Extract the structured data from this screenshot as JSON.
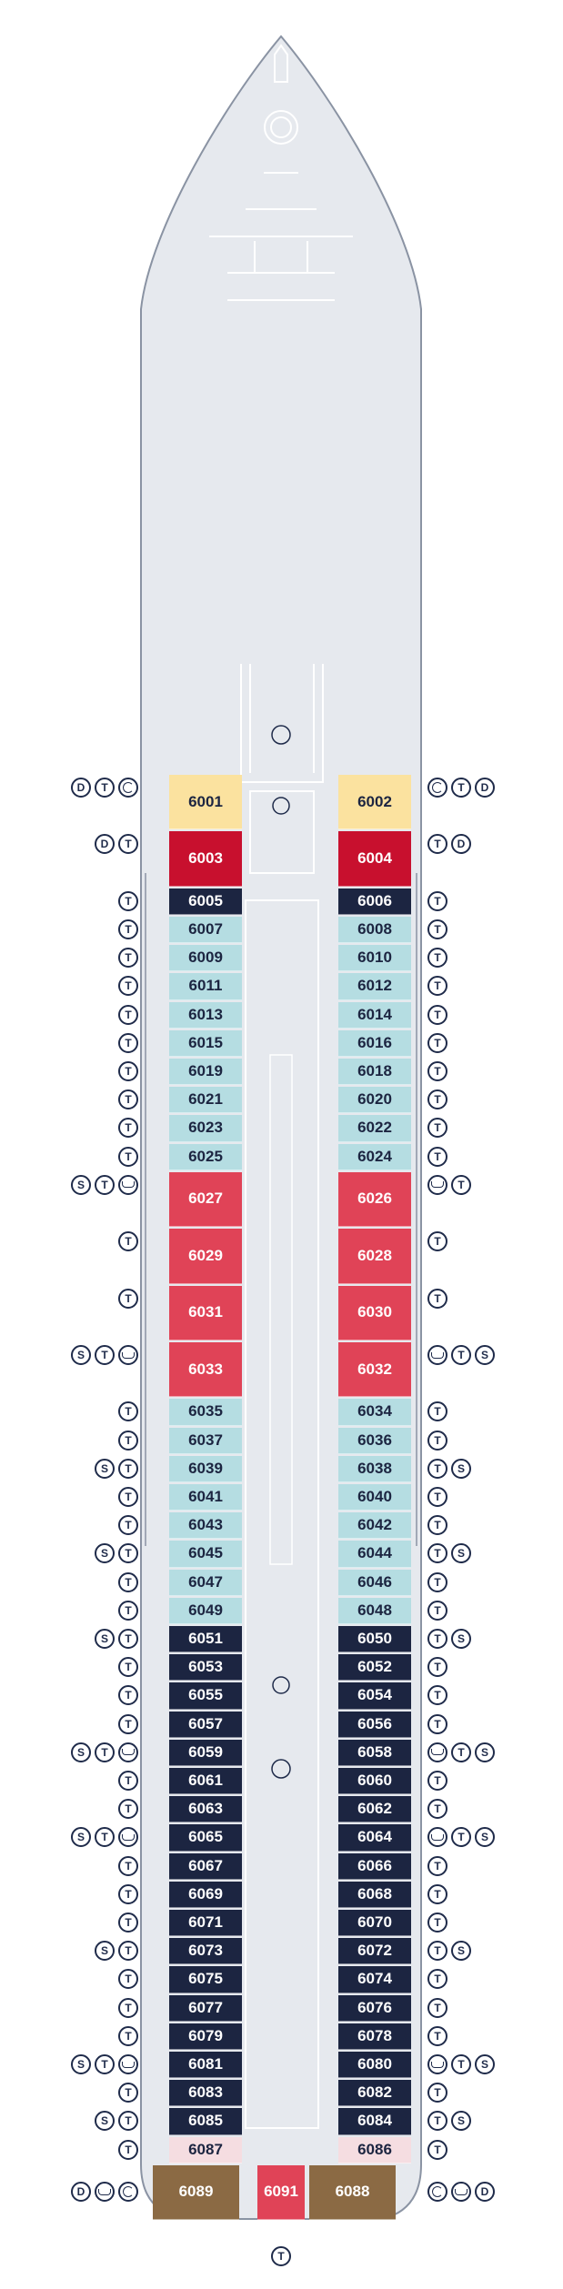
{
  "colors": {
    "hull": "#e6e9ee",
    "hull_stroke": "#8a93a3",
    "outline": "#ffffff",
    "light_blue": "#b5dde2",
    "navy": "#1c2541",
    "red": "#e04357",
    "crimson": "#c8102e",
    "yellow": "#fbe29f",
    "pink": "#f5dde1",
    "brown": "#8b6a44",
    "icon": "#1f2b4a"
  },
  "cabins": [
    {
      "no": "6001",
      "side": "L",
      "row": 0,
      "h": 2,
      "cls": "yellow"
    },
    {
      "no": "6002",
      "side": "R",
      "row": 0,
      "h": 2,
      "cls": "yellow"
    },
    {
      "no": "6003",
      "side": "L",
      "row": 2,
      "h": 2,
      "cls": "crimson"
    },
    {
      "no": "6004",
      "side": "R",
      "row": 2,
      "h": 2,
      "cls": "crimson"
    },
    {
      "no": "6005",
      "side": "L",
      "row": 4,
      "h": 1,
      "cls": "navy"
    },
    {
      "no": "6006",
      "side": "R",
      "row": 4,
      "h": 1,
      "cls": "navy"
    },
    {
      "no": "6007",
      "side": "L",
      "row": 5,
      "h": 1,
      "cls": "light_blue"
    },
    {
      "no": "6008",
      "side": "R",
      "row": 5,
      "h": 1,
      "cls": "light_blue"
    },
    {
      "no": "6009",
      "side": "L",
      "row": 6,
      "h": 1,
      "cls": "light_blue"
    },
    {
      "no": "6010",
      "side": "R",
      "row": 6,
      "h": 1,
      "cls": "light_blue"
    },
    {
      "no": "6011",
      "side": "L",
      "row": 7,
      "h": 1,
      "cls": "light_blue"
    },
    {
      "no": "6012",
      "side": "R",
      "row": 7,
      "h": 1,
      "cls": "light_blue"
    },
    {
      "no": "6013",
      "side": "L",
      "row": 8,
      "h": 1,
      "cls": "light_blue"
    },
    {
      "no": "6014",
      "side": "R",
      "row": 8,
      "h": 1,
      "cls": "light_blue"
    },
    {
      "no": "6015",
      "side": "L",
      "row": 9,
      "h": 1,
      "cls": "light_blue"
    },
    {
      "no": "6016",
      "side": "R",
      "row": 9,
      "h": 1,
      "cls": "light_blue"
    },
    {
      "no": "6019",
      "side": "L",
      "row": 10,
      "h": 1,
      "cls": "light_blue"
    },
    {
      "no": "6018",
      "side": "R",
      "row": 10,
      "h": 1,
      "cls": "light_blue"
    },
    {
      "no": "6021",
      "side": "L",
      "row": 11,
      "h": 1,
      "cls": "light_blue"
    },
    {
      "no": "6020",
      "side": "R",
      "row": 11,
      "h": 1,
      "cls": "light_blue"
    },
    {
      "no": "6023",
      "side": "L",
      "row": 12,
      "h": 1,
      "cls": "light_blue"
    },
    {
      "no": "6022",
      "side": "R",
      "row": 12,
      "h": 1,
      "cls": "light_blue"
    },
    {
      "no": "6025",
      "side": "L",
      "row": 13,
      "h": 1,
      "cls": "light_blue"
    },
    {
      "no": "6024",
      "side": "R",
      "row": 13,
      "h": 1,
      "cls": "light_blue"
    },
    {
      "no": "6027",
      "side": "L",
      "row": 14,
      "h": 2,
      "cls": "red"
    },
    {
      "no": "6026",
      "side": "R",
      "row": 14,
      "h": 2,
      "cls": "red"
    },
    {
      "no": "6029",
      "side": "L",
      "row": 16,
      "h": 2,
      "cls": "red"
    },
    {
      "no": "6028",
      "side": "R",
      "row": 16,
      "h": 2,
      "cls": "red"
    },
    {
      "no": "6031",
      "side": "L",
      "row": 18,
      "h": 2,
      "cls": "red"
    },
    {
      "no": "6030",
      "side": "R",
      "row": 18,
      "h": 2,
      "cls": "red"
    },
    {
      "no": "6033",
      "side": "L",
      "row": 20,
      "h": 2,
      "cls": "red"
    },
    {
      "no": "6032",
      "side": "R",
      "row": 20,
      "h": 2,
      "cls": "red"
    },
    {
      "no": "6035",
      "side": "L",
      "row": 22,
      "h": 1,
      "cls": "light_blue"
    },
    {
      "no": "6034",
      "side": "R",
      "row": 22,
      "h": 1,
      "cls": "light_blue"
    },
    {
      "no": "6037",
      "side": "L",
      "row": 23,
      "h": 1,
      "cls": "light_blue"
    },
    {
      "no": "6036",
      "side": "R",
      "row": 23,
      "h": 1,
      "cls": "light_blue"
    },
    {
      "no": "6039",
      "side": "L",
      "row": 24,
      "h": 1,
      "cls": "light_blue"
    },
    {
      "no": "6038",
      "side": "R",
      "row": 24,
      "h": 1,
      "cls": "light_blue"
    },
    {
      "no": "6041",
      "side": "L",
      "row": 25,
      "h": 1,
      "cls": "light_blue"
    },
    {
      "no": "6040",
      "side": "R",
      "row": 25,
      "h": 1,
      "cls": "light_blue"
    },
    {
      "no": "6043",
      "side": "L",
      "row": 26,
      "h": 1,
      "cls": "light_blue"
    },
    {
      "no": "6042",
      "side": "R",
      "row": 26,
      "h": 1,
      "cls": "light_blue"
    },
    {
      "no": "6045",
      "side": "L",
      "row": 27,
      "h": 1,
      "cls": "light_blue"
    },
    {
      "no": "6044",
      "side": "R",
      "row": 27,
      "h": 1,
      "cls": "light_blue"
    },
    {
      "no": "6047",
      "side": "L",
      "row": 28,
      "h": 1,
      "cls": "light_blue"
    },
    {
      "no": "6046",
      "side": "R",
      "row": 28,
      "h": 1,
      "cls": "light_blue"
    },
    {
      "no": "6049",
      "side": "L",
      "row": 29,
      "h": 1,
      "cls": "light_blue"
    },
    {
      "no": "6048",
      "side": "R",
      "row": 29,
      "h": 1,
      "cls": "light_blue"
    },
    {
      "no": "6051",
      "side": "L",
      "row": 30,
      "h": 1,
      "cls": "navy"
    },
    {
      "no": "6050",
      "side": "R",
      "row": 30,
      "h": 1,
      "cls": "navy"
    },
    {
      "no": "6053",
      "side": "L",
      "row": 31,
      "h": 1,
      "cls": "navy"
    },
    {
      "no": "6052",
      "side": "R",
      "row": 31,
      "h": 1,
      "cls": "navy"
    },
    {
      "no": "6055",
      "side": "L",
      "row": 32,
      "h": 1,
      "cls": "navy"
    },
    {
      "no": "6054",
      "side": "R",
      "row": 32,
      "h": 1,
      "cls": "navy"
    },
    {
      "no": "6057",
      "side": "L",
      "row": 33,
      "h": 1,
      "cls": "navy"
    },
    {
      "no": "6056",
      "side": "R",
      "row": 33,
      "h": 1,
      "cls": "navy"
    },
    {
      "no": "6059",
      "side": "L",
      "row": 34,
      "h": 1,
      "cls": "navy"
    },
    {
      "no": "6058",
      "side": "R",
      "row": 34,
      "h": 1,
      "cls": "navy"
    },
    {
      "no": "6061",
      "side": "L",
      "row": 35,
      "h": 1,
      "cls": "navy"
    },
    {
      "no": "6060",
      "side": "R",
      "row": 35,
      "h": 1,
      "cls": "navy"
    },
    {
      "no": "6063",
      "side": "L",
      "row": 36,
      "h": 1,
      "cls": "navy"
    },
    {
      "no": "6062",
      "side": "R",
      "row": 36,
      "h": 1,
      "cls": "navy"
    },
    {
      "no": "6065",
      "side": "L",
      "row": 37,
      "h": 1,
      "cls": "navy"
    },
    {
      "no": "6064",
      "side": "R",
      "row": 37,
      "h": 1,
      "cls": "navy"
    },
    {
      "no": "6067",
      "side": "L",
      "row": 38,
      "h": 1,
      "cls": "navy"
    },
    {
      "no": "6066",
      "side": "R",
      "row": 38,
      "h": 1,
      "cls": "navy"
    },
    {
      "no": "6069",
      "side": "L",
      "row": 39,
      "h": 1,
      "cls": "navy"
    },
    {
      "no": "6068",
      "side": "R",
      "row": 39,
      "h": 1,
      "cls": "navy"
    },
    {
      "no": "6071",
      "side": "L",
      "row": 40,
      "h": 1,
      "cls": "navy"
    },
    {
      "no": "6070",
      "side": "R",
      "row": 40,
      "h": 1,
      "cls": "navy"
    },
    {
      "no": "6073",
      "side": "L",
      "row": 41,
      "h": 1,
      "cls": "navy"
    },
    {
      "no": "6072",
      "side": "R",
      "row": 41,
      "h": 1,
      "cls": "navy"
    },
    {
      "no": "6075",
      "side": "L",
      "row": 42,
      "h": 1,
      "cls": "navy"
    },
    {
      "no": "6074",
      "side": "R",
      "row": 42,
      "h": 1,
      "cls": "navy"
    },
    {
      "no": "6077",
      "side": "L",
      "row": 43,
      "h": 1,
      "cls": "navy"
    },
    {
      "no": "6076",
      "side": "R",
      "row": 43,
      "h": 1,
      "cls": "navy"
    },
    {
      "no": "6079",
      "side": "L",
      "row": 44,
      "h": 1,
      "cls": "navy"
    },
    {
      "no": "6078",
      "side": "R",
      "row": 44,
      "h": 1,
      "cls": "navy"
    },
    {
      "no": "6081",
      "side": "L",
      "row": 45,
      "h": 1,
      "cls": "navy"
    },
    {
      "no": "6080",
      "side": "R",
      "row": 45,
      "h": 1,
      "cls": "navy"
    },
    {
      "no": "6083",
      "side": "L",
      "row": 46,
      "h": 1,
      "cls": "navy"
    },
    {
      "no": "6082",
      "side": "R",
      "row": 46,
      "h": 1,
      "cls": "navy"
    },
    {
      "no": "6085",
      "side": "L",
      "row": 47,
      "h": 1,
      "cls": "navy"
    },
    {
      "no": "6084",
      "side": "R",
      "row": 47,
      "h": 1,
      "cls": "navy"
    },
    {
      "no": "6087",
      "side": "L",
      "row": 48,
      "h": 1,
      "cls": "pink"
    },
    {
      "no": "6086",
      "side": "R",
      "row": 48,
      "h": 1,
      "cls": "pink"
    },
    {
      "no": "6089",
      "side": "L",
      "row": 49,
      "h": 2,
      "cls": "brown"
    },
    {
      "no": "6091",
      "side": "C",
      "row": 49,
      "h": 2,
      "cls": "red"
    },
    {
      "no": "6088",
      "side": "R",
      "row": 49,
      "h": 2,
      "cls": "brown"
    }
  ],
  "icons_left": [
    {
      "row": 0,
      "items": [
        "D",
        "T",
        "spiral"
      ]
    },
    {
      "row": 2,
      "items": [
        "D",
        "T"
      ]
    },
    {
      "row": 4,
      "items": [
        "T"
      ]
    },
    {
      "row": 5,
      "items": [
        "T"
      ]
    },
    {
      "row": 6,
      "items": [
        "T"
      ]
    },
    {
      "row": 7,
      "items": [
        "T"
      ]
    },
    {
      "row": 8,
      "items": [
        "T"
      ]
    },
    {
      "row": 9,
      "items": [
        "T"
      ]
    },
    {
      "row": 10,
      "items": [
        "T"
      ]
    },
    {
      "row": 11,
      "items": [
        "T"
      ]
    },
    {
      "row": 12,
      "items": [
        "T"
      ]
    },
    {
      "row": 13,
      "items": [
        "T"
      ]
    },
    {
      "row": 14,
      "items": [
        "S",
        "T",
        "bath"
      ]
    },
    {
      "row": 16,
      "items": [
        "T"
      ]
    },
    {
      "row": 18,
      "items": [
        "T"
      ]
    },
    {
      "row": 20,
      "items": [
        "S",
        "T",
        "bath"
      ]
    },
    {
      "row": 22,
      "items": [
        "T"
      ]
    },
    {
      "row": 23,
      "items": [
        "T"
      ]
    },
    {
      "row": 24,
      "items": [
        "S",
        "T"
      ]
    },
    {
      "row": 25,
      "items": [
        "T"
      ]
    },
    {
      "row": 26,
      "items": [
        "T"
      ]
    },
    {
      "row": 27,
      "items": [
        "S",
        "T"
      ]
    },
    {
      "row": 28,
      "items": [
        "T"
      ]
    },
    {
      "row": 29,
      "items": [
        "T"
      ]
    },
    {
      "row": 30,
      "items": [
        "S",
        "T"
      ]
    },
    {
      "row": 31,
      "items": [
        "T"
      ]
    },
    {
      "row": 32,
      "items": [
        "T"
      ]
    },
    {
      "row": 33,
      "items": [
        "T"
      ]
    },
    {
      "row": 34,
      "items": [
        "S",
        "T",
        "bath"
      ]
    },
    {
      "row": 35,
      "items": [
        "T"
      ]
    },
    {
      "row": 36,
      "items": [
        "T"
      ]
    },
    {
      "row": 37,
      "items": [
        "S",
        "T",
        "bath"
      ]
    },
    {
      "row": 38,
      "items": [
        "T"
      ]
    },
    {
      "row": 39,
      "items": [
        "T"
      ]
    },
    {
      "row": 40,
      "items": [
        "T"
      ]
    },
    {
      "row": 41,
      "items": [
        "S",
        "T"
      ]
    },
    {
      "row": 42,
      "items": [
        "T"
      ]
    },
    {
      "row": 43,
      "items": [
        "T"
      ]
    },
    {
      "row": 44,
      "items": [
        "T"
      ]
    },
    {
      "row": 45,
      "items": [
        "S",
        "T",
        "bath"
      ]
    },
    {
      "row": 46,
      "items": [
        "T"
      ]
    },
    {
      "row": 47,
      "items": [
        "S",
        "T"
      ]
    },
    {
      "row": 48,
      "items": [
        "T"
      ]
    },
    {
      "row": 49.5,
      "items": [
        "D",
        "bath",
        "spiral"
      ]
    }
  ],
  "icons_right": [
    {
      "row": 0,
      "items": [
        "spiral",
        "T",
        "D"
      ]
    },
    {
      "row": 2,
      "items": [
        "T",
        "D"
      ]
    },
    {
      "row": 4,
      "items": [
        "T"
      ]
    },
    {
      "row": 5,
      "items": [
        "T"
      ]
    },
    {
      "row": 6,
      "items": [
        "T"
      ]
    },
    {
      "row": 7,
      "items": [
        "T"
      ]
    },
    {
      "row": 8,
      "items": [
        "T"
      ]
    },
    {
      "row": 9,
      "items": [
        "T"
      ]
    },
    {
      "row": 10,
      "items": [
        "T"
      ]
    },
    {
      "row": 11,
      "items": [
        "T"
      ]
    },
    {
      "row": 12,
      "items": [
        "T"
      ]
    },
    {
      "row": 13,
      "items": [
        "T"
      ]
    },
    {
      "row": 14,
      "items": [
        "bath",
        "T"
      ]
    },
    {
      "row": 16,
      "items": [
        "T"
      ]
    },
    {
      "row": 18,
      "items": [
        "T"
      ]
    },
    {
      "row": 20,
      "items": [
        "bath",
        "T",
        "S"
      ]
    },
    {
      "row": 22,
      "items": [
        "T"
      ]
    },
    {
      "row": 23,
      "items": [
        "T"
      ]
    },
    {
      "row": 24,
      "items": [
        "T",
        "S"
      ]
    },
    {
      "row": 25,
      "items": [
        "T"
      ]
    },
    {
      "row": 26,
      "items": [
        "T"
      ]
    },
    {
      "row": 27,
      "items": [
        "T",
        "S"
      ]
    },
    {
      "row": 28,
      "items": [
        "T"
      ]
    },
    {
      "row": 29,
      "items": [
        "T"
      ]
    },
    {
      "row": 30,
      "items": [
        "T",
        "S"
      ]
    },
    {
      "row": 31,
      "items": [
        "T"
      ]
    },
    {
      "row": 32,
      "items": [
        "T"
      ]
    },
    {
      "row": 33,
      "items": [
        "T"
      ]
    },
    {
      "row": 34,
      "items": [
        "bath",
        "T",
        "S"
      ]
    },
    {
      "row": 35,
      "items": [
        "T"
      ]
    },
    {
      "row": 36,
      "items": [
        "T"
      ]
    },
    {
      "row": 37,
      "items": [
        "bath",
        "T",
        "S"
      ]
    },
    {
      "row": 38,
      "items": [
        "T"
      ]
    },
    {
      "row": 39,
      "items": [
        "T"
      ]
    },
    {
      "row": 40,
      "items": [
        "T"
      ]
    },
    {
      "row": 41,
      "items": [
        "T",
        "S"
      ]
    },
    {
      "row": 42,
      "items": [
        "T"
      ]
    },
    {
      "row": 43,
      "items": [
        "T"
      ]
    },
    {
      "row": 44,
      "items": [
        "T"
      ]
    },
    {
      "row": 45,
      "items": [
        "bath",
        "T",
        "S"
      ]
    },
    {
      "row": 46,
      "items": [
        "T"
      ]
    },
    {
      "row": 47,
      "items": [
        "T",
        "S"
      ]
    },
    {
      "row": 48,
      "items": [
        "T"
      ]
    },
    {
      "row": 49.5,
      "items": [
        "spiral",
        "bath",
        "D"
      ]
    }
  ],
  "bottom_icon": "T"
}
